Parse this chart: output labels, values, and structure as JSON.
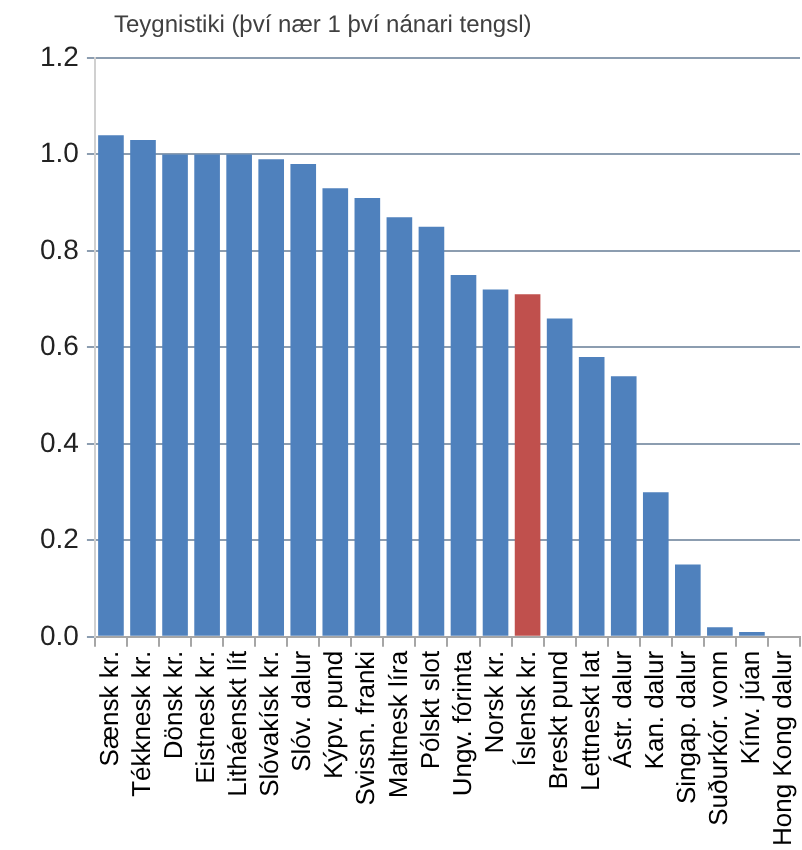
{
  "chart_data": {
    "type": "bar",
    "title": "Teygnistiki (því nær 1 því nánari tengsl)",
    "categories": [
      "Sænsk kr.",
      "Tékknesk kr.",
      "Dönsk kr.",
      "Eistnesk kr.",
      "Litháenskt lít",
      "Slóvakísk kr.",
      "Slóv. dalur",
      "Kýpv. pund",
      "Svissn. franki",
      "Maltnesk líra",
      "Pólskt slot",
      "Ungv. fórinta",
      "Norsk kr.",
      "Íslensk kr.",
      "Breskt pund",
      "Lettneskt lat",
      "Ástr. dalur",
      "Kan. dalur",
      "Singap. dalur",
      "Suðurkór. vonn",
      "Kínv. júan",
      "Hong Kong dalur"
    ],
    "values": [
      1.04,
      1.03,
      1.0,
      1.0,
      1.0,
      0.99,
      0.98,
      0.93,
      0.91,
      0.87,
      0.85,
      0.75,
      0.72,
      0.71,
      0.66,
      0.58,
      0.54,
      0.3,
      0.15,
      0.02,
      0.01,
      0
    ],
    "colors": [
      "#4f81bd",
      "#4f81bd",
      "#4f81bd",
      "#4f81bd",
      "#4f81bd",
      "#4f81bd",
      "#4f81bd",
      "#4f81bd",
      "#4f81bd",
      "#4f81bd",
      "#4f81bd",
      "#4f81bd",
      "#4f81bd",
      "#c0504d",
      "#4f81bd",
      "#4f81bd",
      "#4f81bd",
      "#4f81bd",
      "#4f81bd",
      "#4f81bd",
      "#4f81bd",
      "#4f81bd"
    ],
    "ylim": [
      0,
      1.2
    ],
    "yticks": [
      {
        "value": 0,
        "label": "0.0"
      },
      0.2,
      0.4,
      0.6,
      0.8,
      {
        "value": 1,
        "label": "1.0"
      },
      1.2
    ],
    "grid": "y",
    "legend": false
  }
}
